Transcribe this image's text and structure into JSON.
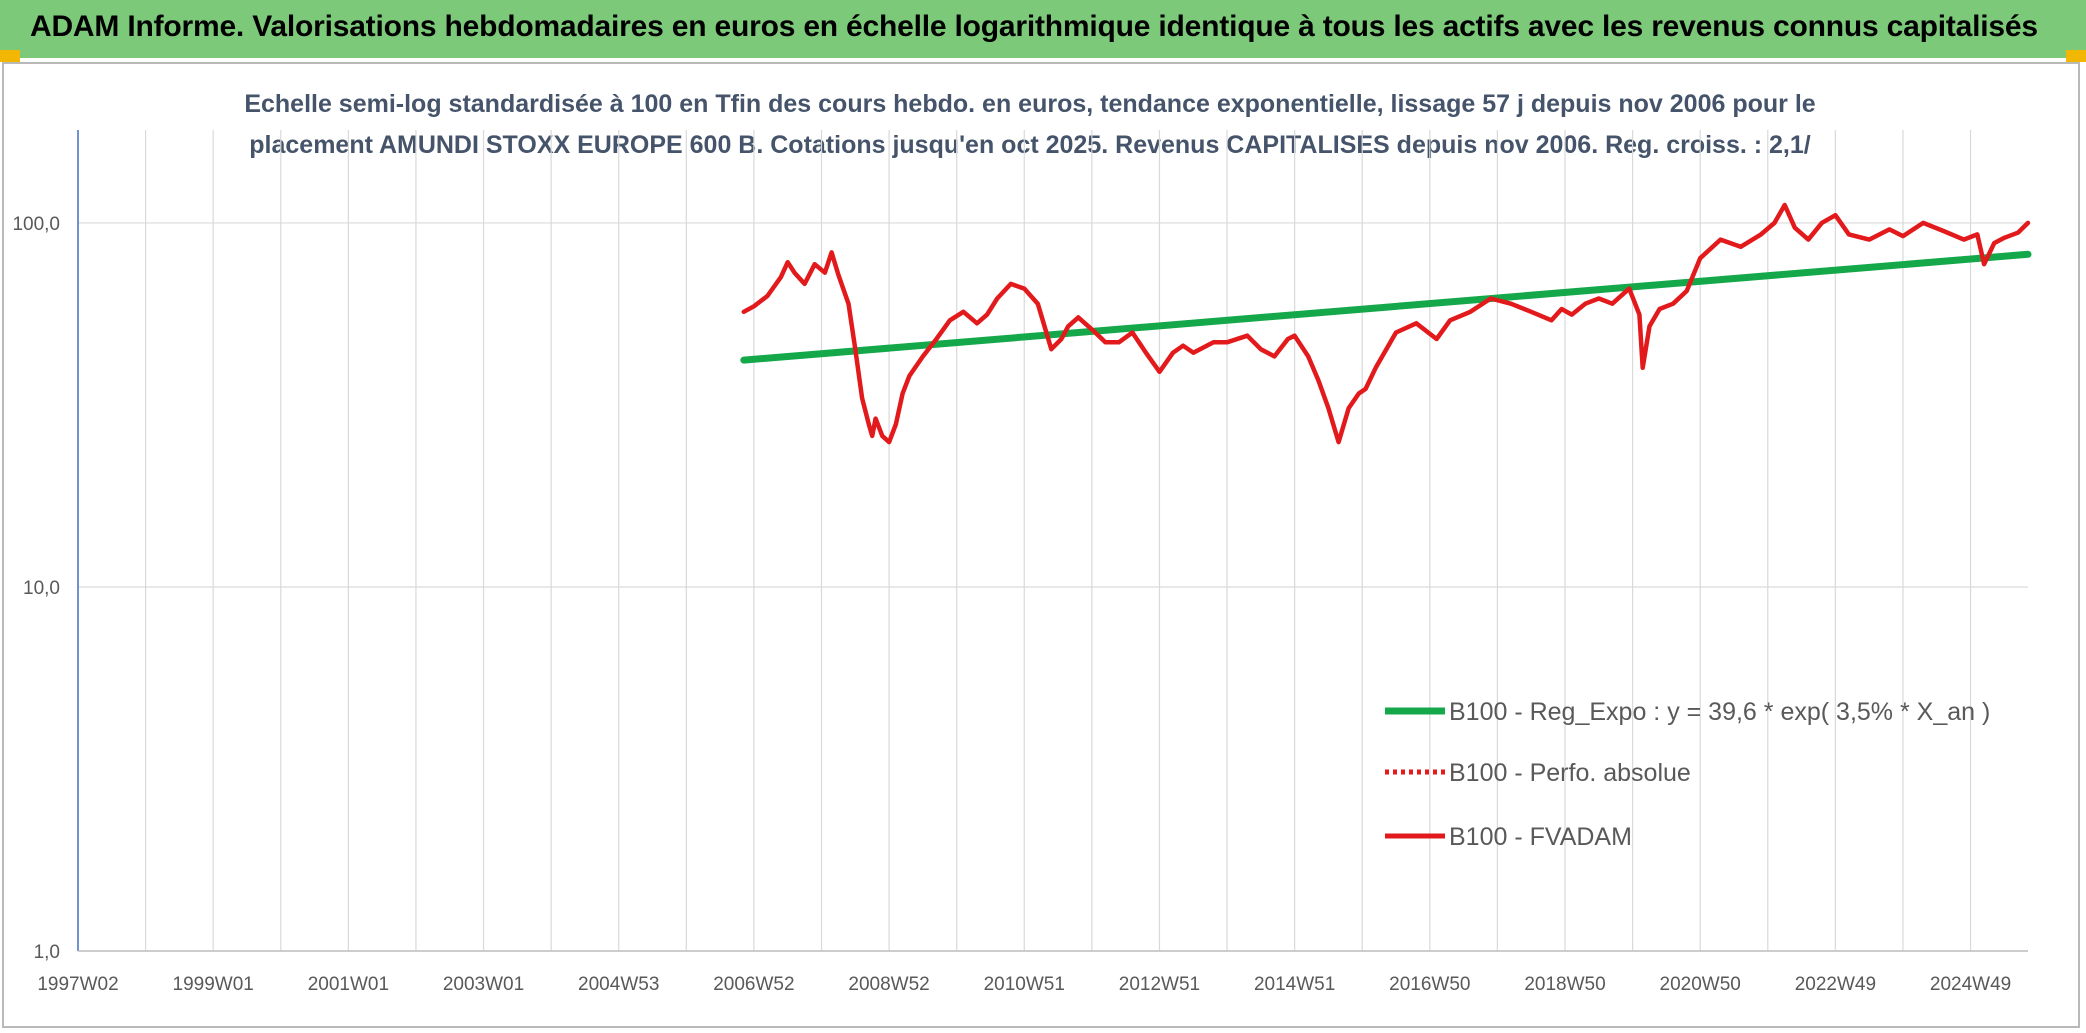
{
  "banner": {
    "title": "ADAM Informe. Valorisations hebdomadaires en euros en échelle logarithmique identique à tous les actifs avec les revenus connus capitalisés"
  },
  "chart_data": {
    "type": "line",
    "title_line1": "Echelle semi-log standardisée à 100 en Tfin des cours hebdo. en euros, tendance exponentielle, lissage 57 j depuis nov 2006 pour le",
    "title_line2": "placement AMUNDI STOXX EUROPE 600 B. Cotations jusqu'en oct 2025. Revenus CAPITALISES depuis nov 2006. Reg. croiss. : 2,1/",
    "y_scale": "log",
    "ylim": [
      1,
      180
    ],
    "y_ticks": [
      "1,0",
      "10,0",
      "100,0"
    ],
    "y_tick_values": [
      1,
      10,
      100
    ],
    "xlim": [
      1997.0,
      2025.85
    ],
    "x_ticks": [
      "1997W02",
      "1999W01",
      "2001W01",
      "2003W01",
      "2004W53",
      "2006W52",
      "2008W52",
      "2010W51",
      "2012W51",
      "2014W51",
      "2016W50",
      "2018W50",
      "2020W50",
      "2022W49",
      "2024W49"
    ],
    "x_tick_values": [
      1997.0,
      1999.0,
      2001.0,
      2003.0,
      2005.0,
      2007.0,
      2009.0,
      2011.0,
      2013.0,
      2015.0,
      2017.0,
      2019.0,
      2021.0,
      2023.0,
      2025.0
    ],
    "grid": true,
    "legend_position": "right",
    "series": [
      {
        "name": "B100 - Reg_Expo : y = 39,6 * exp( 3,5% *  X_an )",
        "color": "#14a84b",
        "style": "solid",
        "x": [
          2006.85,
          2025.85
        ],
        "y": [
          42,
          82
        ]
      },
      {
        "name": "B100 - Perfo. absolue",
        "color": "#e31a1c",
        "style": "dotted",
        "x": [],
        "y": []
      },
      {
        "name": "B100 - FVADAM",
        "color": "#e31a1c",
        "style": "solid",
        "x": [
          2006.85,
          2007.0,
          2007.2,
          2007.4,
          2007.5,
          2007.6,
          2007.75,
          2007.9,
          2008.05,
          2008.15,
          2008.25,
          2008.4,
          2008.5,
          2008.6,
          2008.7,
          2008.75,
          2008.8,
          2008.9,
          2009.0,
          2009.1,
          2009.2,
          2009.3,
          2009.5,
          2009.7,
          2009.9,
          2010.1,
          2010.3,
          2010.45,
          2010.6,
          2010.8,
          2011.0,
          2011.2,
          2011.4,
          2011.55,
          2011.65,
          2011.8,
          2012.0,
          2012.2,
          2012.4,
          2012.6,
          2012.8,
          2013.0,
          2013.2,
          2013.35,
          2013.5,
          2013.8,
          2014.0,
          2014.3,
          2014.5,
          2014.7,
          2014.9,
          2015.0,
          2015.2,
          2015.35,
          2015.5,
          2015.65,
          2015.8,
          2015.95,
          2016.05,
          2016.2,
          2016.5,
          2016.8,
          2017.1,
          2017.3,
          2017.6,
          2017.9,
          2018.2,
          2018.5,
          2018.8,
          2018.95,
          2019.1,
          2019.3,
          2019.5,
          2019.7,
          2019.95,
          2020.1,
          2020.15,
          2020.25,
          2020.4,
          2020.6,
          2020.8,
          2021.0,
          2021.3,
          2021.6,
          2021.9,
          2022.1,
          2022.25,
          2022.4,
          2022.6,
          2022.8,
          2023.0,
          2023.2,
          2023.5,
          2023.8,
          2024.0,
          2024.3,
          2024.6,
          2024.9,
          2025.1,
          2025.2,
          2025.35,
          2025.5,
          2025.7,
          2025.85
        ],
        "y": [
          57,
          59,
          63,
          71,
          78,
          73,
          68,
          77,
          73,
          83,
          72,
          60,
          45,
          33,
          28,
          26,
          29,
          26,
          25,
          28,
          34,
          38,
          43,
          48,
          54,
          57,
          53,
          56,
          62,
          68,
          66,
          60,
          45,
          48,
          52,
          55,
          51,
          47,
          47,
          50,
          44,
          39,
          44,
          46,
          44,
          47,
          47,
          49,
          45,
          43,
          48,
          49,
          43,
          37,
          31,
          25,
          31,
          34,
          35,
          40,
          50,
          53,
          48,
          54,
          57,
          62,
          60,
          57,
          54,
          58,
          56,
          60,
          62,
          60,
          66,
          56,
          40,
          52,
          58,
          60,
          65,
          80,
          90,
          86,
          93,
          100,
          112,
          97,
          90,
          100,
          105,
          93,
          90,
          96,
          92,
          100,
          95,
          90,
          93,
          77,
          88,
          91,
          94,
          100
        ]
      }
    ]
  }
}
